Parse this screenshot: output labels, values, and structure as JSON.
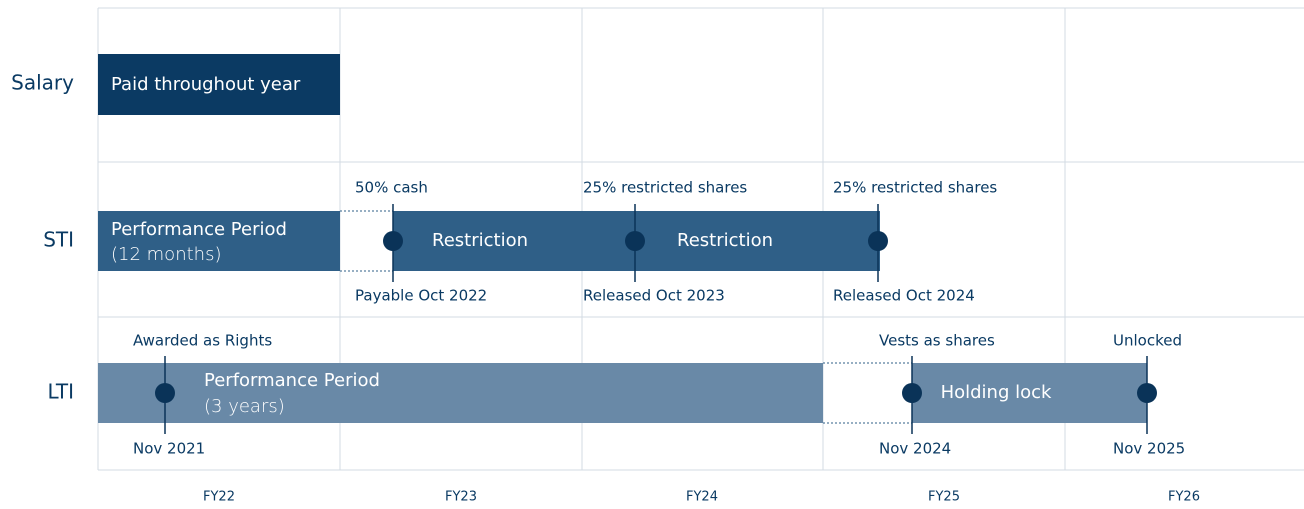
{
  "columns": [
    "FY22",
    "FY23",
    "FY24",
    "FY25",
    "FY26"
  ],
  "rows": [
    {
      "label": "Salary",
      "bars": [
        {
          "label": "Paid throughout year"
        }
      ]
    },
    {
      "label": "STI",
      "bars": [
        {
          "label": "Performance Period",
          "sublabel": "(12 months)"
        },
        {
          "label": "Restriction"
        },
        {
          "label": "Restriction"
        }
      ],
      "milestones": [
        {
          "above": "50% cash",
          "below": "Payable Oct 2022"
        },
        {
          "above": "25% restricted shares",
          "below": "Released Oct 2023"
        },
        {
          "above": "25% restricted shares",
          "below": "Released Oct 2024"
        }
      ]
    },
    {
      "label": "LTI",
      "bars": [
        {
          "label": "Performance Period",
          "sublabel": "(3 years)"
        },
        {
          "label": "Holding lock"
        }
      ],
      "milestones": [
        {
          "above": "Awarded as Rights",
          "below": "Nov 2021"
        },
        {
          "above": "Vests as shares",
          "below": "Nov 2024"
        },
        {
          "above": "Unlocked",
          "below": "Nov 2025"
        }
      ]
    }
  ]
}
